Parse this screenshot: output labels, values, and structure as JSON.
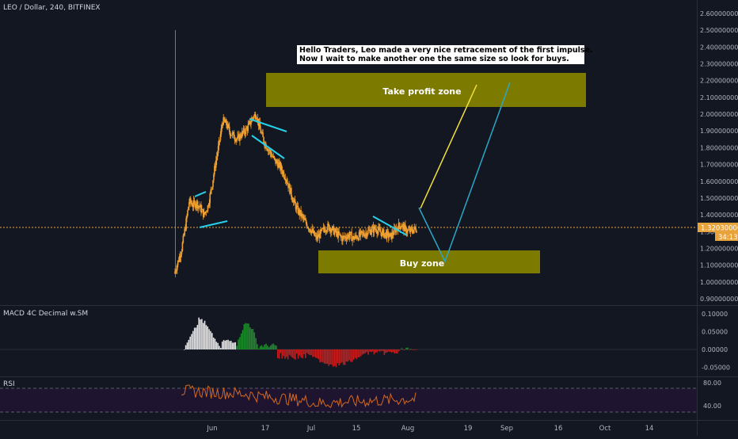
{
  "header": {
    "symbol_line": "LEO / Dollar, 240, BITFINEX"
  },
  "annotation": {
    "line1": "Hello Traders, Leo made a very nice retracement of the first impulse.",
    "line2": "Now I wait to make another one the same size so look for buys."
  },
  "zones": {
    "take_profit": "Take profit zone",
    "buy": "Buy zone"
  },
  "price_axis": {
    "ticks": [
      "2.60000000",
      "2.50000000",
      "2.40000000",
      "2.30000000",
      "2.20000000",
      "2.10000000",
      "2.00000000",
      "1.90000000",
      "1.80000000",
      "1.70000000",
      "1.60000000",
      "1.50000000",
      "1.40000000",
      "1.30000000",
      "1.20000000",
      "1.10000000",
      "1.00000000",
      "0.90000000"
    ],
    "current_price": "1.32030000",
    "countdown": "34:13"
  },
  "macd": {
    "title": "MACD 4C Decimal w.SM",
    "ticks": [
      "0.10000",
      "0.05000",
      "0.00000",
      "-0.05000"
    ]
  },
  "rsi": {
    "title": "RSI",
    "ticks": [
      "80.00",
      "40.00"
    ]
  },
  "time_axis": [
    "Jun",
    "17",
    "Jul",
    "15",
    "Aug",
    "19",
    "Sep",
    "16",
    "Oct",
    "14"
  ],
  "colors": {
    "background": "#131722",
    "candle": "#f0a030",
    "zone_fill": "#7d7a00",
    "trendline": "#26d0e8",
    "projection_yellow": "#f2e13a",
    "projection_blue": "#2aa7c9",
    "price_line": "#e8a33a",
    "macd_green": "#1e8c2c",
    "macd_red": "#c41e1e",
    "macd_white": "#e6e6e6",
    "rsi_line": "#d2691e",
    "rsi_band": "#1e1430"
  },
  "chart_data": {
    "type": "candlestick",
    "x_unit": "date (4h candles, approximated as daily closes)",
    "y_unit": "USD",
    "ylim": [
      0.87,
      2.64
    ],
    "price_series": {
      "x": [
        "May 29",
        "May 30",
        "May 31",
        "Jun 1",
        "Jun 2",
        "Jun 3",
        "Jun 4",
        "Jun 5",
        "Jun 6",
        "Jun 7",
        "Jun 8",
        "Jun 9",
        "Jun 10",
        "Jun 11",
        "Jun 12",
        "Jun 13",
        "Jun 14",
        "Jun 15",
        "Jun 16",
        "Jun 17",
        "Jun 18",
        "Jun 19",
        "Jun 20",
        "Jun 21",
        "Jun 22",
        "Jun 23",
        "Jun 24",
        "Jun 25",
        "Jun 26",
        "Jun 27",
        "Jun 28",
        "Jun 29",
        "Jun 30",
        "Jul 1",
        "Jul 2",
        "Jul 3",
        "Jul 4",
        "Jul 5",
        "Jul 6",
        "Jul 7",
        "Jul 8",
        "Jul 9",
        "Jul 10",
        "Jul 11",
        "Jul 12",
        "Jul 13",
        "Jul 14",
        "Jul 15",
        "Jul 16",
        "Jul 17",
        "Jul 18",
        "Jul 19",
        "Jul 20",
        "Jul 21",
        "Jul 22",
        "Jul 23",
        "Jul 24",
        "Jul 25",
        "Jul 26",
        "Jul 27",
        "Jul 28",
        "Jul 29",
        "Jul 30",
        "Jul 31",
        "Aug 1",
        "Aug 2"
      ],
      "close": [
        1.05,
        1.12,
        1.2,
        1.33,
        1.48,
        1.46,
        1.47,
        1.44,
        1.4,
        1.45,
        1.56,
        1.7,
        1.82,
        1.96,
        1.94,
        1.89,
        1.87,
        1.85,
        1.88,
        1.9,
        1.93,
        1.98,
        2.0,
        1.91,
        1.84,
        1.8,
        1.76,
        1.72,
        1.7,
        1.66,
        1.62,
        1.55,
        1.48,
        1.43,
        1.4,
        1.36,
        1.33,
        1.3,
        1.26,
        1.28,
        1.31,
        1.33,
        1.32,
        1.3,
        1.28,
        1.26,
        1.27,
        1.28,
        1.26,
        1.27,
        1.28,
        1.29,
        1.3,
        1.31,
        1.32,
        1.3,
        1.29,
        1.28,
        1.27,
        1.3,
        1.33,
        1.34,
        1.31,
        1.3,
        1.31,
        1.32
      ]
    },
    "zones": [
      {
        "name": "Take profit zone",
        "y_low": 2.03,
        "y_high": 2.23,
        "from": "Jun 22",
        "to": "Sep 10"
      },
      {
        "name": "Buy zone",
        "y_low": 1.05,
        "y_high": 1.18,
        "from": "Jul 3",
        "to": "Sep 19"
      }
    ],
    "projections": [
      {
        "color": "yellow",
        "points": [
          {
            "x": "Aug 1",
            "y": 1.4
          },
          {
            "x": "Aug 29",
            "y": 2.16
          }
        ]
      },
      {
        "color": "blue",
        "points": [
          {
            "x": "Aug 2",
            "y": 1.42
          },
          {
            "x": "Aug 17",
            "y": 1.12
          },
          {
            "x": "Sep 3",
            "y": 2.14
          }
        ]
      }
    ],
    "macd_ylim": [
      -0.06,
      0.11
    ],
    "rsi_ylim": [
      20,
      90
    ],
    "rsi_levels": [
      70,
      30
    ]
  }
}
